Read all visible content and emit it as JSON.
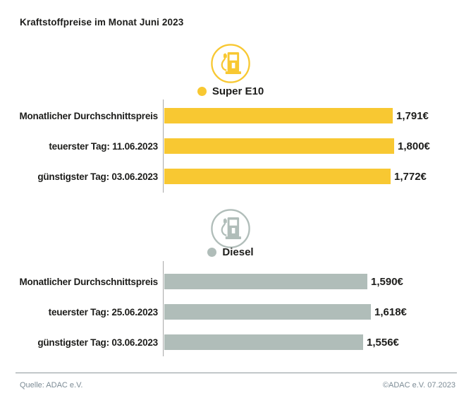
{
  "title": "Kraftstoffpreise im Monat Juni 2023",
  "chart_data": [
    {
      "type": "bar",
      "orientation": "horizontal",
      "series_name": "Super E10",
      "legend_label": "Super E10",
      "bar_color": "#F8C832",
      "categories": [
        "Monatlicher Durchschnittspreis",
        "teuerster Tag: 11.06.2023",
        "günstigster Tag: 03.06.2023"
      ],
      "values": [
        1.791,
        1.8,
        1.772
      ],
      "value_labels": [
        "1,791€",
        "1,800€",
        "1,772€"
      ],
      "unit": "€",
      "xlim": [
        0,
        1.8
      ],
      "grid": false,
      "legend_position": "above-chart"
    },
    {
      "type": "bar",
      "orientation": "horizontal",
      "series_name": "Diesel",
      "legend_label": "Diesel",
      "bar_color": "#B0BDB9",
      "categories": [
        "Monatlicher Durchschnittspreis",
        "teuerster Tag: 25.06.2023",
        "günstigster Tag: 03.06.2023"
      ],
      "values": [
        1.59,
        1.618,
        1.556
      ],
      "value_labels": [
        "1,590€",
        "1,618€",
        "1,556€"
      ],
      "unit": "€",
      "xlim": [
        0,
        1.8
      ],
      "grid": false,
      "legend_position": "above-chart"
    }
  ],
  "footer": {
    "source": "Quelle: ADAC e.V.",
    "copyright": "©ADAC e.V. 07.2023"
  },
  "colors": {
    "super_e10_yellow": "#F8C832",
    "diesel_gray": "#B0BDB9",
    "text_dark": "#1d1d1b",
    "footer_gray": "#7c8b95",
    "axis_gray": "#a8a8a8"
  }
}
